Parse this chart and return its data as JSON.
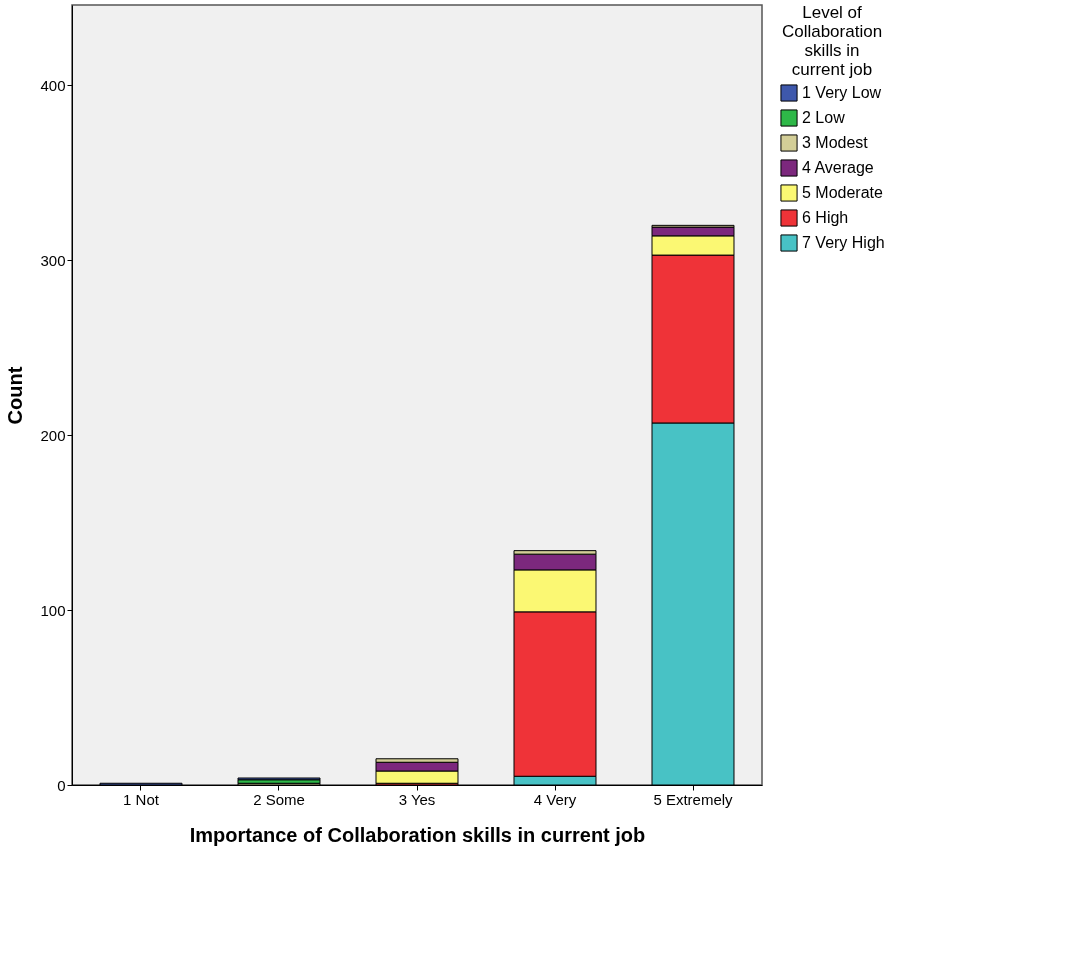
{
  "chart_data": {
    "type": "bar",
    "stacked": true,
    "xlabel": "Importance of Collaboration skills in current job",
    "ylabel": "Count",
    "legend_title": "Level of Collaboration skills in current job",
    "legend": "top right",
    "categories": [
      "1 Not",
      "2 Some",
      "3 Yes",
      "4 Very",
      "5 Extremely"
    ],
    "ylim": [
      0,
      446
    ],
    "yticks": [
      0,
      100,
      200,
      300,
      400
    ],
    "grid": false,
    "series": [
      {
        "name": "7 Very High",
        "color": "#48c2c5",
        "values": [
          0,
          0,
          0,
          5,
          207
        ]
      },
      {
        "name": "6 High",
        "color": "#ef3338",
        "values": [
          0,
          0,
          1,
          94,
          96
        ]
      },
      {
        "name": "5 Moderate",
        "color": "#fbf873",
        "values": [
          0,
          0,
          7,
          24,
          11
        ]
      },
      {
        "name": "4 Average",
        "color": "#7c287d",
        "values": [
          0,
          0,
          5,
          9,
          5
        ]
      },
      {
        "name": "3 Modest",
        "color": "#d3ce97",
        "values": [
          0,
          1,
          2,
          2,
          1
        ]
      },
      {
        "name": "2 Low",
        "color": "#2eb848",
        "values": [
          0,
          2,
          0,
          0,
          0
        ]
      },
      {
        "name": "1 Very Low",
        "color": "#3e58ac",
        "values": [
          1,
          1,
          0,
          0,
          0
        ]
      }
    ]
  }
}
